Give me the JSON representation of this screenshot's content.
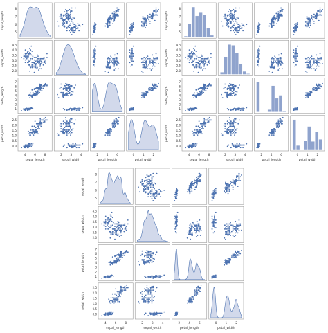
{
  "variables": [
    "sepal_length",
    "sepal_width",
    "petal_length",
    "petal_width"
  ],
  "colors": {
    "points": "#4c72b0",
    "fill": "#c7d0e6",
    "frame": "#333333"
  },
  "chart_data": [
    {
      "type": "scatter-matrix",
      "diag_kind": "kde",
      "variables": [
        "sepal_length",
        "sepal_width",
        "petal_length",
        "petal_width"
      ],
      "ranges": {
        "sepal_length": [
          4,
          8
        ],
        "sepal_width": [
          2.0,
          4.5
        ],
        "petal_length": [
          1,
          7
        ],
        "petal_width": [
          0.0,
          2.5
        ]
      },
      "ticks": {
        "sepal_length": [
          4,
          6,
          8
        ],
        "sepal_width": [
          2.0,
          2.5,
          3.0,
          3.5,
          4.0,
          4.5
        ],
        "petal_length": [
          2,
          4,
          6
        ],
        "petal_width": [
          0,
          1,
          2
        ]
      },
      "ylabels_shown": {
        "sepal_length": [
          "5",
          "6",
          "7",
          "8"
        ],
        "sepal_width": [
          "2.0",
          "2.5",
          "3.0",
          "3.5",
          "4.0",
          "4.5"
        ],
        "petal_length": [
          "1",
          "2",
          "3",
          "4",
          "5",
          "6",
          "7"
        ],
        "petal_width": [
          "0.0",
          "0.5",
          "1.0",
          "1.5",
          "2.0",
          "2.5"
        ]
      },
      "xlabels_shown": {
        "sepal_length": [
          "4",
          "6",
          "8"
        ],
        "sepal_width": [
          "2",
          "3",
          "4"
        ],
        "petal_length": [
          "2",
          "4",
          "6"
        ],
        "petal_width": [
          "0",
          "1",
          "2"
        ]
      },
      "axis_labels": [
        "sepal_length",
        "sepal_width",
        "petal_length",
        "petal_width"
      ]
    },
    {
      "type": "scatter-matrix",
      "diag_kind": "hist",
      "variables": [
        "sepal_length",
        "sepal_width",
        "petal_length",
        "petal_width"
      ],
      "ranges": {
        "sepal_length": [
          4,
          8
        ],
        "sepal_width": [
          2.0,
          4.5
        ],
        "petal_length": [
          1,
          7
        ],
        "petal_width": [
          0.0,
          2.5
        ]
      },
      "xlabels_shown": {
        "sepal_length": [
          "4",
          "6",
          "8"
        ],
        "sepal_width": [
          "2",
          "3",
          "4"
        ],
        "petal_length": [
          "2",
          "4",
          "6"
        ],
        "petal_width": [
          "0",
          "1",
          "2"
        ]
      },
      "ylabels_shown": {
        "sepal_length": [
          "5",
          "6",
          "7",
          "8"
        ],
        "sepal_width": [
          "2.0",
          "2.5",
          "3.0",
          "3.5",
          "4.0",
          "4.5"
        ],
        "petal_length": [
          "1",
          "2",
          "3",
          "4",
          "5",
          "6",
          "7"
        ],
        "petal_width": [
          "0.0",
          "0.5",
          "1.0",
          "1.5",
          "2.0",
          "2.5"
        ]
      },
      "axis_labels": [
        "sepal_length",
        "sepal_width",
        "petal_length",
        "petal_width"
      ]
    },
    {
      "type": "scatter-matrix",
      "diag_kind": "hist+kde",
      "variables": [
        "sepal_length",
        "sepal_width",
        "petal_length",
        "petal_width"
      ],
      "ranges": {
        "sepal_length": [
          4,
          8
        ],
        "sepal_width": [
          2.0,
          4.5
        ],
        "petal_length": [
          1,
          7
        ],
        "petal_width": [
          0.0,
          2.5
        ]
      },
      "xlabels_shown": {
        "sepal_length": [
          "4",
          "6",
          "8"
        ],
        "sepal_width": [
          "2",
          "3",
          "4"
        ],
        "petal_length": [
          "2",
          "4",
          "6"
        ],
        "petal_width": [
          "0",
          "1",
          "2"
        ]
      },
      "ylabels_shown": {
        "sepal_length": [
          "5",
          "6",
          "7",
          "8"
        ],
        "sepal_width": [
          "2.0",
          "2.5",
          "3.0",
          "3.5",
          "4.0",
          "4.5"
        ],
        "petal_length": [
          "1",
          "2",
          "3",
          "4",
          "5",
          "6",
          "7"
        ],
        "petal_width": [
          "0.0",
          "0.5",
          "1.0",
          "1.5",
          "2.0",
          "2.5"
        ]
      },
      "axis_labels": [
        "sepal_length",
        "sepal_width",
        "petal_length",
        "petal_width"
      ]
    }
  ]
}
